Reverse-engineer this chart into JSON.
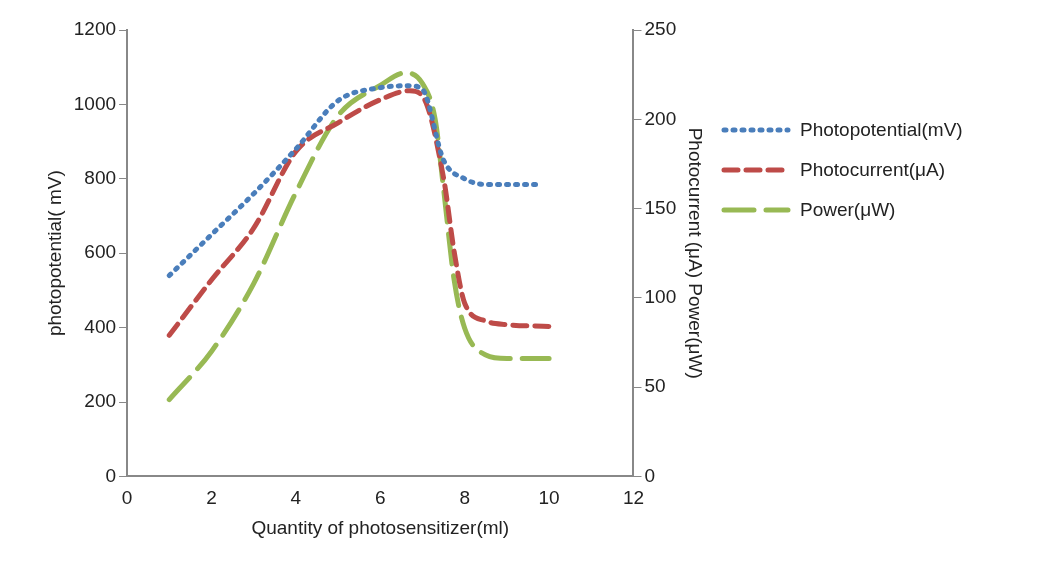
{
  "chart_data": {
    "type": "line",
    "xlabel": "Quantity of photosensitizer(ml)",
    "ylabel": "photopotential( mV)",
    "y2label": "Photocurrent (μA) Power(μW)",
    "xlim": [
      0,
      12
    ],
    "xticks": [
      0,
      2,
      4,
      6,
      8,
      10,
      12
    ],
    "ylim": [
      0,
      1200
    ],
    "yticks": [
      0,
      200,
      400,
      600,
      800,
      1000,
      1200
    ],
    "y2lim": [
      0,
      250
    ],
    "y2ticks": [
      0,
      50,
      100,
      150,
      200,
      250
    ],
    "grid": false,
    "legend": "right",
    "marker": "none",
    "series": [
      {
        "name": "Photopotential(mV)",
        "color": "#4a7ebb",
        "line_style": "dotted",
        "x": [
          1,
          2,
          3,
          4,
          5,
          6,
          6.7,
          7,
          7.5,
          8,
          8.5,
          9,
          9.7
        ],
        "values": [
          540,
          650,
          760,
          880,
          1010,
          1045,
          1050,
          1040,
          850,
          800,
          785,
          785,
          785
        ]
      },
      {
        "name": "Photocurrent(μA)",
        "color": "#be4b48",
        "line_style": "dashed",
        "axis": "y2",
        "x": [
          1,
          2,
          3,
          4,
          5,
          6,
          6.7,
          7,
          7.5,
          7.75,
          8,
          8.5,
          9,
          10
        ],
        "values": [
          79,
          110,
          139,
          182,
          198,
          211,
          216,
          213,
          167,
          126,
          97,
          87,
          85,
          84
        ]
      },
      {
        "name": "Power(μW)",
        "color": "#98b954",
        "line_style": "longdash",
        "axis": "y2",
        "x": [
          1,
          2,
          3,
          4,
          5,
          6,
          6.6,
          7,
          7.3,
          7.5,
          7.75,
          8,
          8.5,
          9,
          10
        ],
        "values": [
          43,
          70,
          108,
          159,
          202,
          219,
          226,
          220,
          200,
          161,
          110,
          83,
          68,
          66,
          66
        ]
      }
    ]
  }
}
